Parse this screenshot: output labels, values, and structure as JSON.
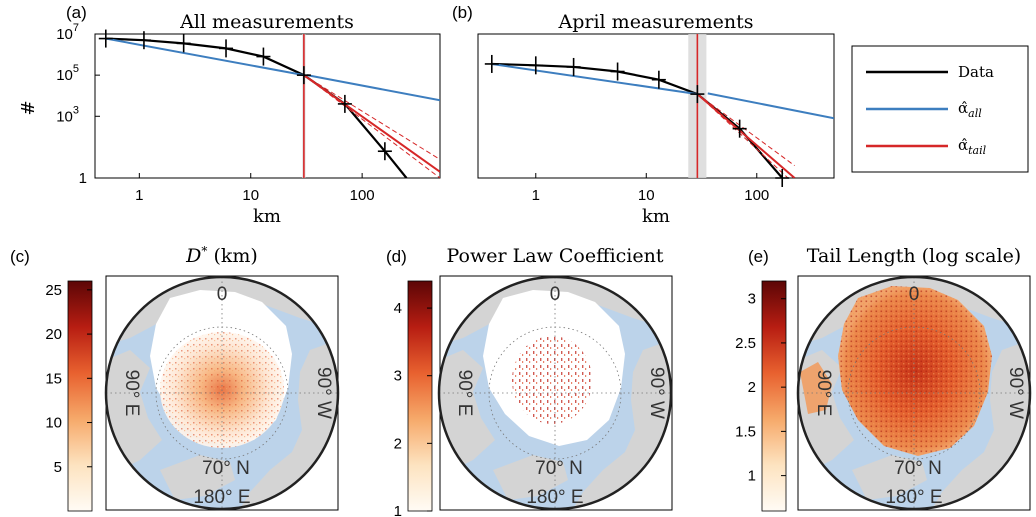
{
  "chart_data": [
    {
      "panel": "(a)",
      "type": "line",
      "title": "All measurements",
      "xlabel": "km",
      "ylabel": "#",
      "xscale": "log",
      "yscale": "log",
      "xlim": [
        0.4,
        500
      ],
      "ylim": [
        1,
        10000000
      ],
      "xticks": [
        {
          "v": 1,
          "t": "1"
        },
        {
          "v": 10,
          "t": "10"
        },
        {
          "v": 100,
          "t": "100"
        }
      ],
      "yticks": [
        {
          "v": 1,
          "t": "1"
        },
        {
          "v": 1000,
          "t": "10"
        },
        {
          "v": 100000,
          "t": "10"
        },
        {
          "v": 10000000,
          "t": "10"
        }
      ],
      "ytick_exponents": [
        "",
        "3",
        "5",
        "7"
      ],
      "vline": {
        "x": 30,
        "band": [
          29,
          31
        ]
      },
      "series": [
        {
          "name": "Data",
          "color": "#000000",
          "x": [
            0.5,
            1.1,
            2.5,
            6,
            13,
            30,
            70,
            160,
            250
          ],
          "y": [
            6000000,
            5000000,
            3500000,
            2000000,
            800000,
            100000,
            4000,
            20,
            1
          ]
        },
        {
          "name": "α̂all",
          "color": "#3d7ebf",
          "x": [
            0.5,
            30
          ],
          "y": [
            6000000,
            100000
          ],
          "x2": [
            32,
            500
          ],
          "y2": [
            100000,
            6000
          ]
        },
        {
          "name": "α̂tail",
          "color": "#d62728",
          "x": [
            30,
            500
          ],
          "y": [
            100000,
            2
          ]
        }
      ],
      "markers": {
        "x": [
          0.5,
          1.1,
          2.5,
          6,
          13,
          30,
          70,
          160
        ],
        "y": [
          6000000,
          5000000,
          3500000,
          2000000,
          800000,
          100000,
          4000,
          20
        ]
      }
    },
    {
      "panel": "(b)",
      "type": "line",
      "title": "April measurements",
      "xlabel": "km",
      "xscale": "log",
      "yscale": "log",
      "xlim": [
        0.3,
        500
      ],
      "ylim": [
        1,
        10000000
      ],
      "xticks": [
        {
          "v": 1,
          "t": "1"
        },
        {
          "v": 10,
          "t": "10"
        },
        {
          "v": 100,
          "t": "100"
        }
      ],
      "vline": {
        "x": 29,
        "band": [
          24,
          35
        ]
      },
      "series": [
        {
          "name": "Data",
          "color": "#000000",
          "x": [
            0.4,
            1,
            2.2,
            5.5,
            13,
            29,
            70,
            170
          ],
          "y": [
            350000,
            300000,
            250000,
            150000,
            60000,
            12000,
            250,
            1
          ]
        },
        {
          "name": "α̂all",
          "color": "#3d7ebf",
          "x": [
            0.4,
            29
          ],
          "y": [
            350000,
            12000
          ],
          "x2": [
            36,
            500
          ],
          "y2": [
            13000,
            800
          ]
        },
        {
          "name": "α̂tail",
          "color": "#d62728",
          "x": [
            29,
            220
          ],
          "y": [
            12000,
            1
          ]
        }
      ],
      "markers": {
        "x": [
          0.4,
          1,
          2.2,
          5.5,
          13,
          29,
          70,
          170
        ],
        "y": [
          350000,
          300000,
          250000,
          150000,
          60000,
          12000,
          250,
          1
        ]
      }
    },
    {
      "panel": "(c)",
      "type": "heatmap",
      "title": "D* (km)",
      "colorbar_ticks": [
        "25",
        "20",
        "15",
        "10",
        "5"
      ],
      "colorbar_range": [
        0,
        26
      ],
      "map_labels": [
        "0",
        "90° E",
        "90° W",
        "70° N",
        "180° E"
      ]
    },
    {
      "panel": "(d)",
      "type": "heatmap",
      "title": "Power Law Coefficient",
      "colorbar_ticks": [
        "4",
        "3",
        "2",
        "1"
      ],
      "colorbar_range": [
        1,
        4.4
      ],
      "map_labels": [
        "0",
        "90° E",
        "90° W",
        "70° N",
        "180° E"
      ]
    },
    {
      "panel": "(e)",
      "type": "heatmap",
      "title": "Tail Length (log scale)",
      "colorbar_ticks": [
        "3",
        "2.5",
        "2",
        "1.5",
        "1"
      ],
      "colorbar_range": [
        0.6,
        3.2
      ],
      "map_labels": [
        "0",
        "90° E",
        "90° W",
        "70° N",
        "180° E"
      ]
    }
  ],
  "legend": {
    "items": [
      {
        "label": "Data",
        "color": "#000000",
        "sub": ""
      },
      {
        "label": "α̂",
        "color": "#3d7ebf",
        "sub": "all"
      },
      {
        "label": "α̂",
        "color": "#d62728",
        "sub": "tail"
      }
    ]
  },
  "colors": {
    "ocean": "#bcd3ea",
    "land": "#d4d4d4",
    "ice": "#ffffff"
  }
}
